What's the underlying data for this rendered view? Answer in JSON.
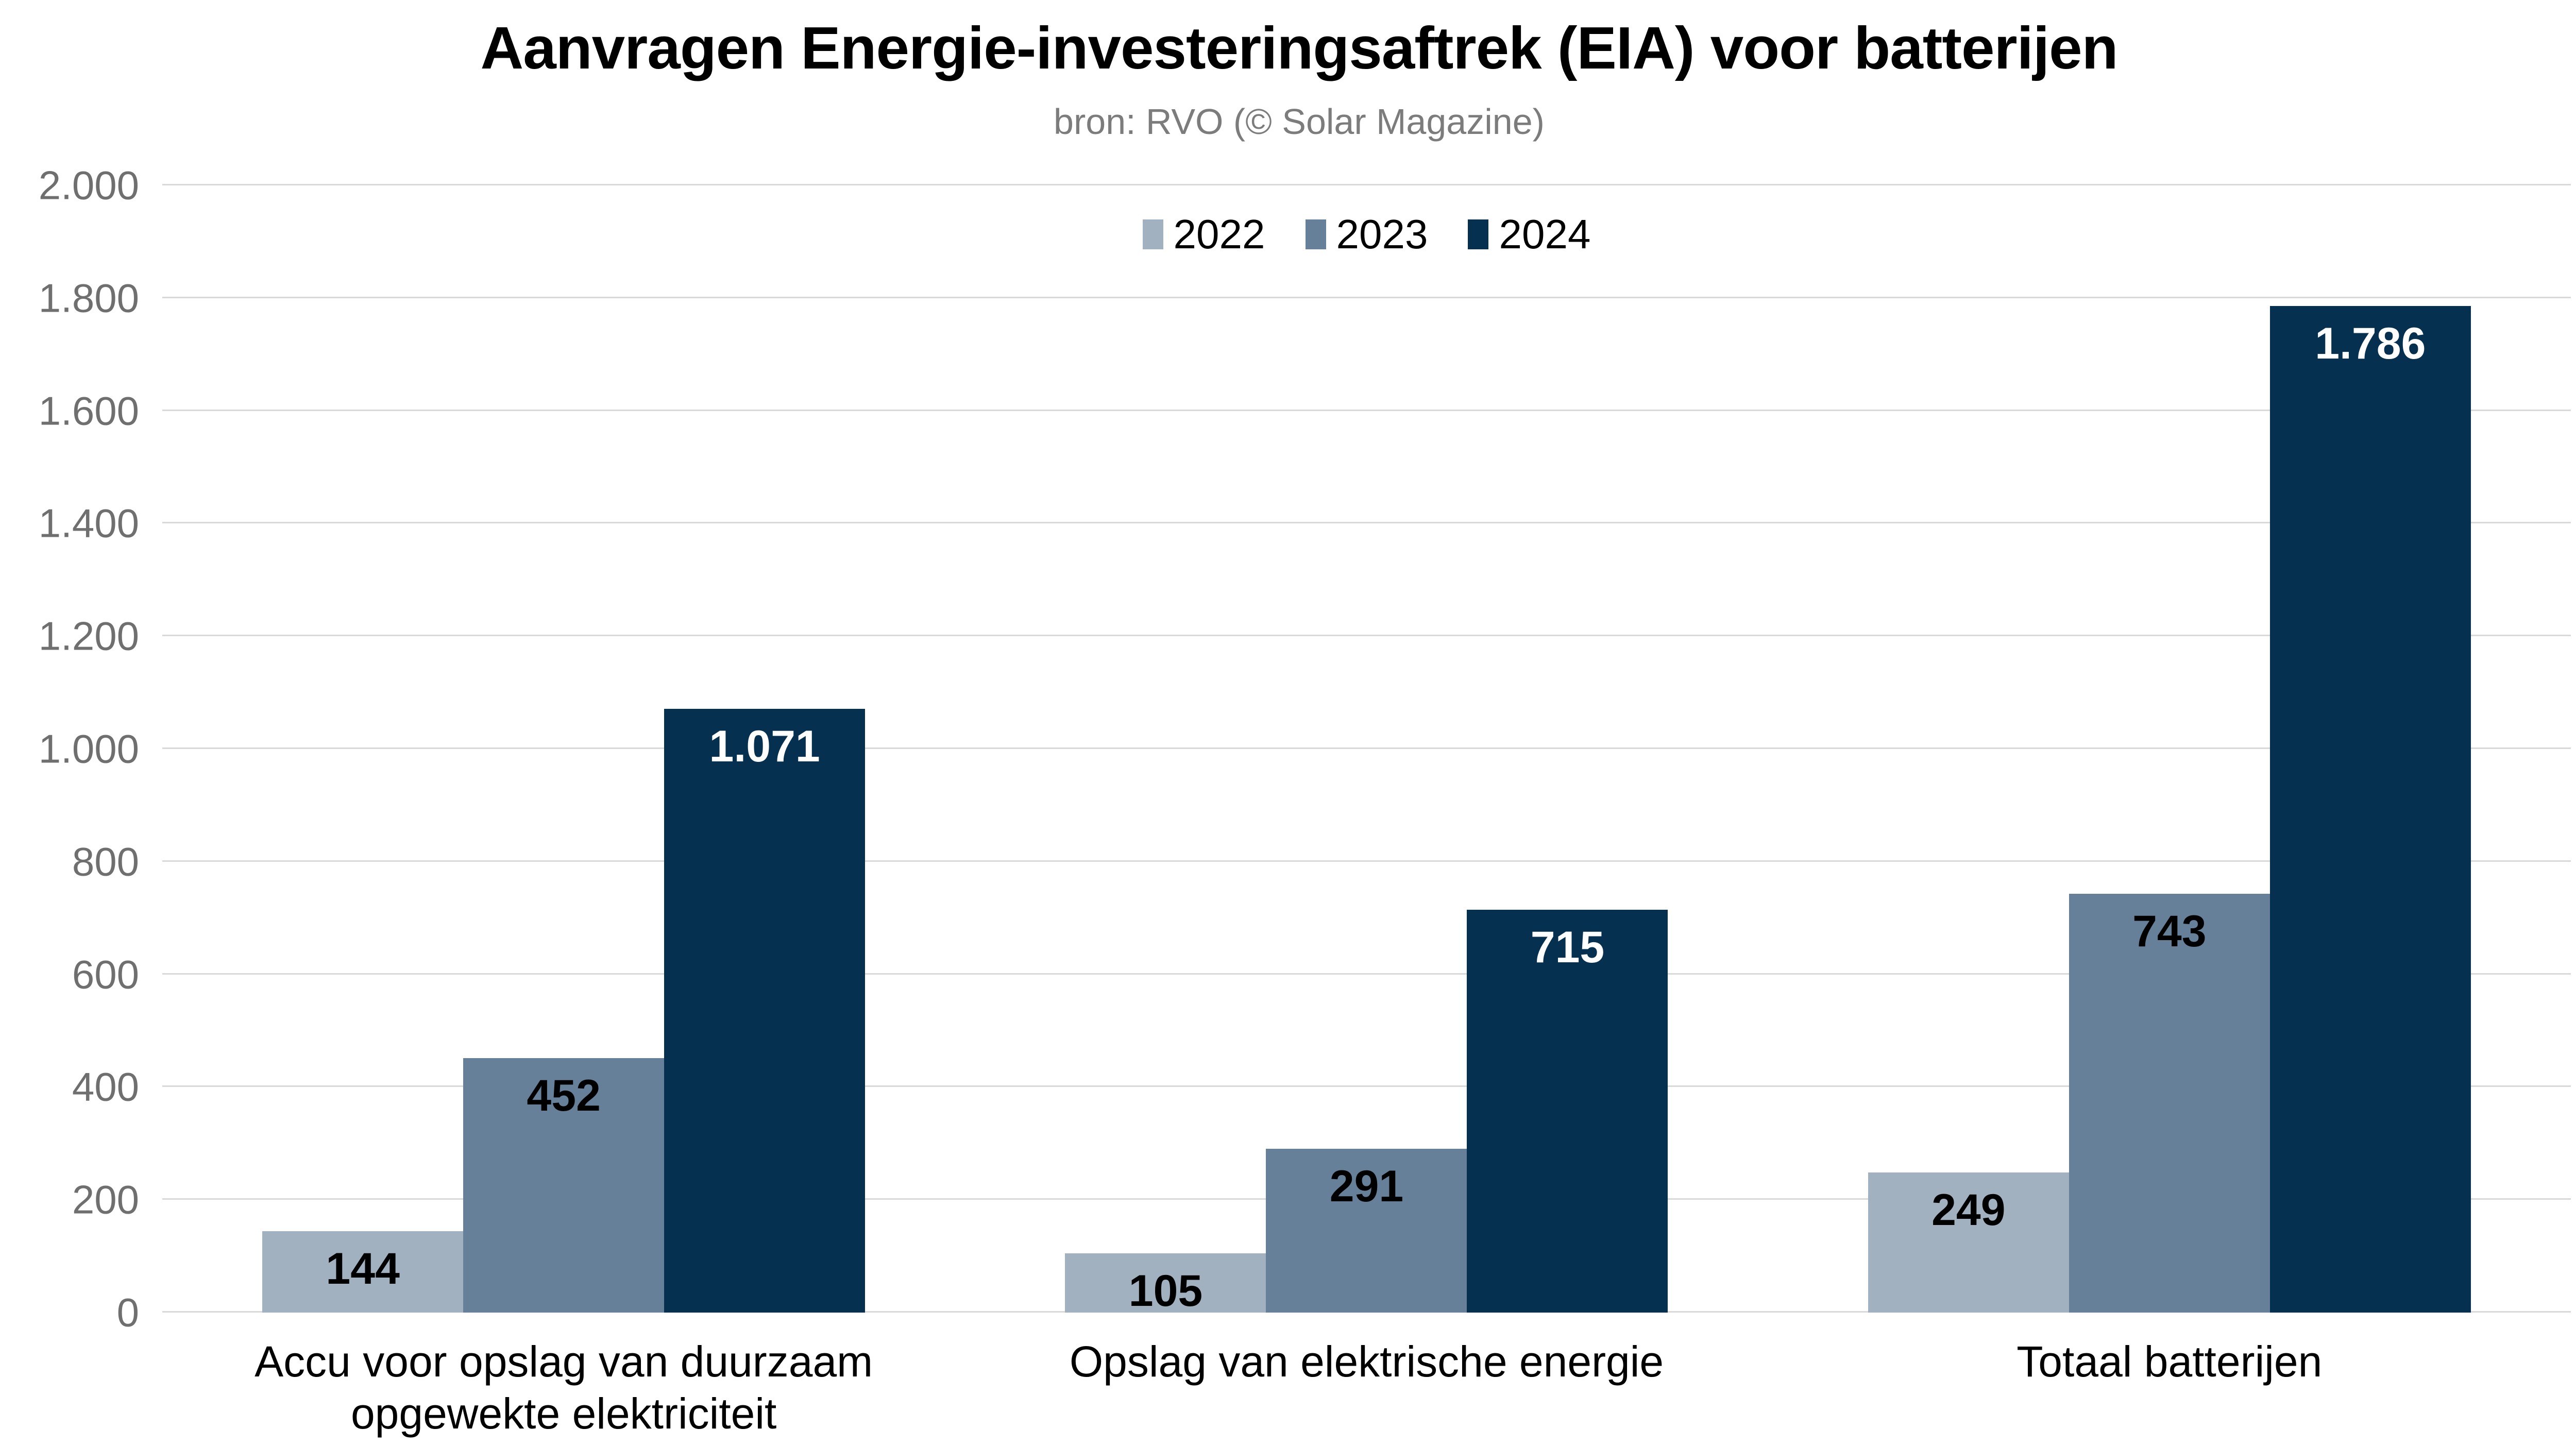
{
  "chart": {
    "title": "Aanvragen Energie-investeringsaftrek (EIA) voor batterijen",
    "subtitle": "bron: RVO (© Solar Magazine)"
  },
  "chart_data": {
    "type": "bar",
    "title": "Aanvragen Energie-investeringsaftrek (EIA) voor batterijen",
    "subtitle": "bron: RVO (© Solar Magazine)",
    "categories": [
      "Accu voor opslag van duurzaam\nopgewekte elektriciteit",
      "Opslag van elektrische energie",
      "Totaal batterijen"
    ],
    "series": [
      {
        "name": "2022",
        "color": "#a1b1c0",
        "label_color": "#000000",
        "values": [
          144,
          105,
          249
        ],
        "labels": [
          "144",
          "105",
          "249"
        ]
      },
      {
        "name": "2023",
        "color": "#66809a",
        "label_color": "#000000",
        "values": [
          452,
          291,
          743
        ],
        "labels": [
          "452",
          "291",
          "743"
        ]
      },
      {
        "name": "2024",
        "color": "#06304f",
        "label_color": "#ffffff",
        "values": [
          1071,
          715,
          1786
        ],
        "labels": [
          "1.071",
          "715",
          "1.786"
        ]
      }
    ],
    "y_axis": {
      "min": 0,
      "max": 2000,
      "step": 200,
      "tick_labels": [
        "0",
        "200",
        "400",
        "600",
        "800",
        "1.000",
        "1.200",
        "1.400",
        "1.600",
        "1.800",
        "2.000"
      ]
    },
    "grid": true,
    "legend_position": "top-center",
    "colors": {
      "background": "#ffffff",
      "gridline": "#d9d9d9",
      "tick_text": "#6f6f6f",
      "subtitle_text": "#7c7c7c",
      "title_text": "#000000"
    }
  }
}
